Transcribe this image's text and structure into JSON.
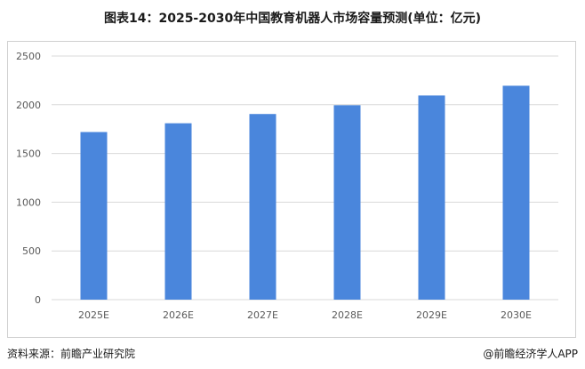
{
  "chart_data": {
    "type": "bar",
    "title": "图表14：2025-2030年中国教育机器人市场容量预测(单位：亿元)",
    "xlabel": "",
    "ylabel": "",
    "categories": [
      "2025E",
      "2026E",
      "2027E",
      "2028E",
      "2029E",
      "2030E"
    ],
    "values": [
      1720,
      1810,
      1905,
      1995,
      2095,
      2195
    ],
    "ylim": [
      0,
      2500
    ],
    "yticks": [
      "0",
      "500",
      "1000",
      "1500",
      "2000",
      "2500"
    ],
    "grid": true,
    "bar_color": "#4a86dc",
    "grid_color": "#d9d9d9"
  },
  "footer": {
    "source": "资料来源：前瞻产业研究院",
    "brand": "@前瞻经济学人APP"
  }
}
